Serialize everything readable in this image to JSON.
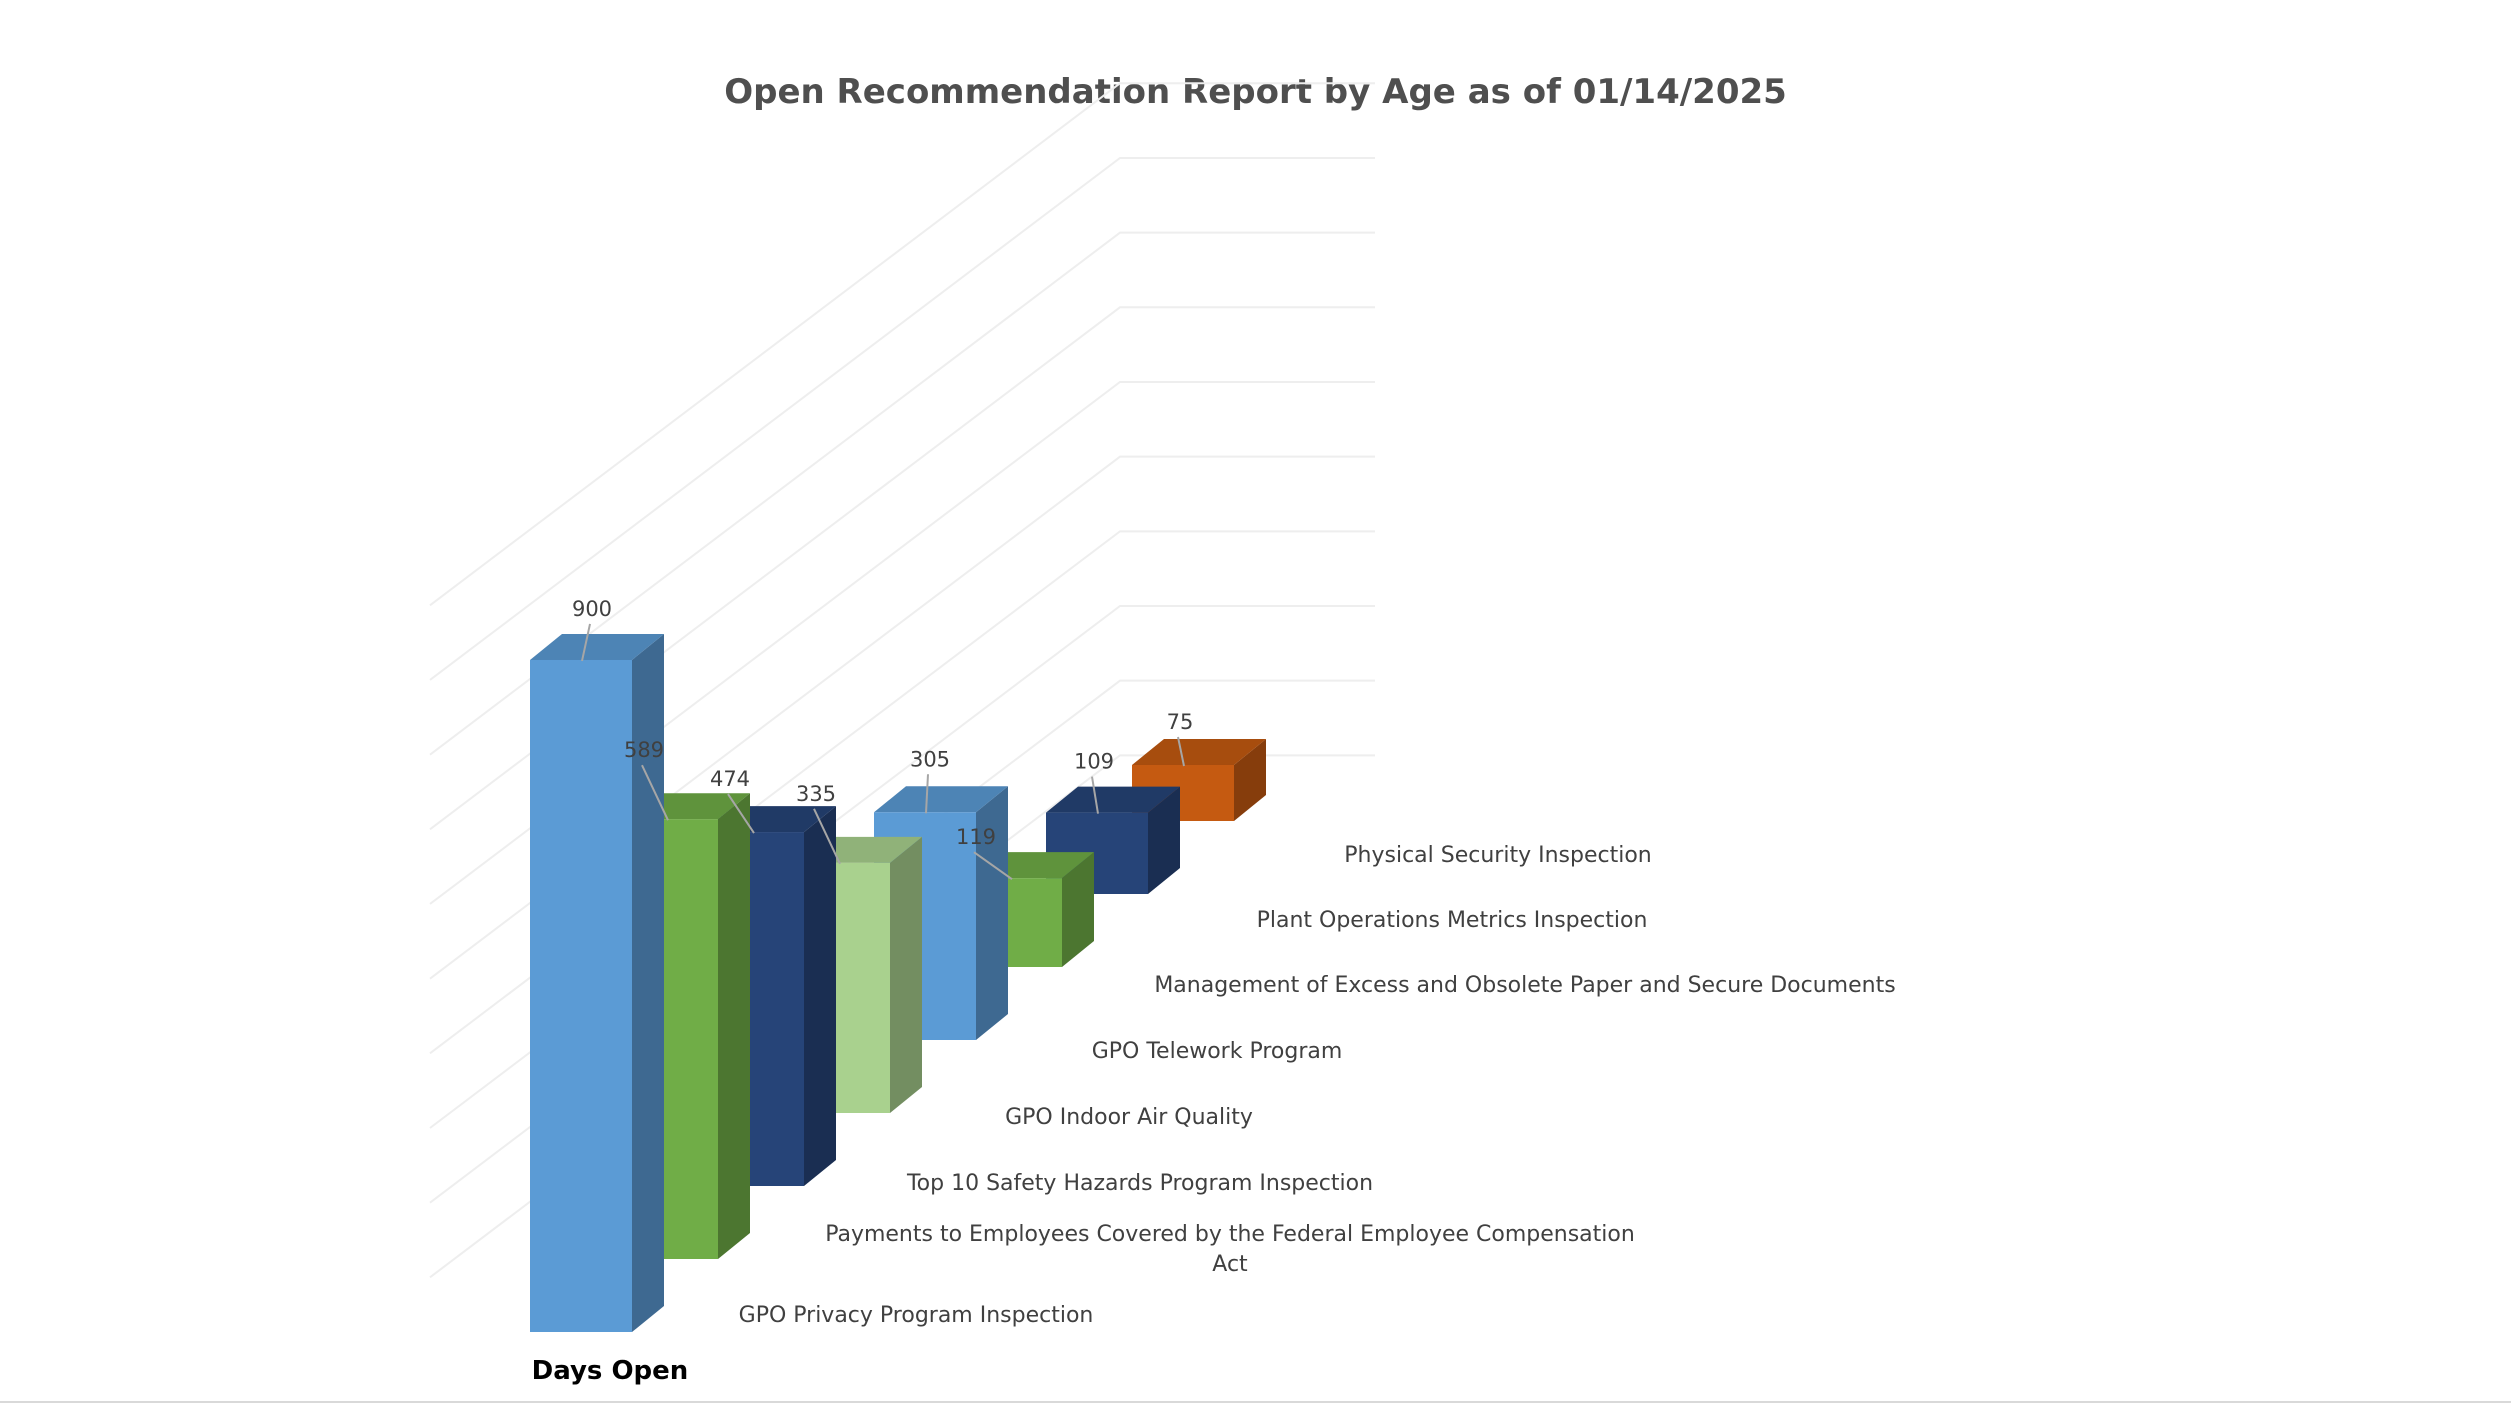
{
  "chart_data": {
    "type": "bar",
    "title": "Open Recommendation Report by Age as of 01/14/2025",
    "series_label": "Days Open",
    "categories": [
      "GPO Privacy Program Inspection",
      "Payments to Employees Covered by the Federal Employee Compensation Act",
      "Top 10 Safety Hazards Program Inspection",
      "GPO Indoor Air Quality",
      "GPO Telework Program",
      "Management of Excess and Obsolete Paper and Secure Documents",
      "Plant Operations Metrics Inspection",
      "Physical Security Inspection"
    ],
    "category_lines": [
      [
        "GPO Privacy Program Inspection"
      ],
      [
        "Payments to Employees Covered by the Federal Employee Compensation",
        "Act"
      ],
      [
        "Top 10 Safety Hazards Program Inspection"
      ],
      [
        "GPO Indoor Air Quality"
      ],
      [
        "GPO Telework Program"
      ],
      [
        "Management of Excess and Obsolete Paper and Secure Documents"
      ],
      [
        "Plant Operations Metrics Inspection"
      ],
      [
        "Physical Security Inspection"
      ]
    ],
    "values": [
      900,
      589,
      474,
      335,
      305,
      119,
      109,
      75
    ],
    "data_labels": [
      "900",
      "589",
      "474",
      "335",
      "305",
      "119",
      "109",
      "75"
    ],
    "bar_colors": [
      "#5b9bd5",
      "#70ad47",
      "#264478",
      "#a9d18e",
      "#5b9bd5",
      "#70ad47",
      "#264478",
      "#c55a11"
    ],
    "ylim": [
      0,
      1000
    ],
    "gridlines": true,
    "legend": "none",
    "three_d": true
  }
}
